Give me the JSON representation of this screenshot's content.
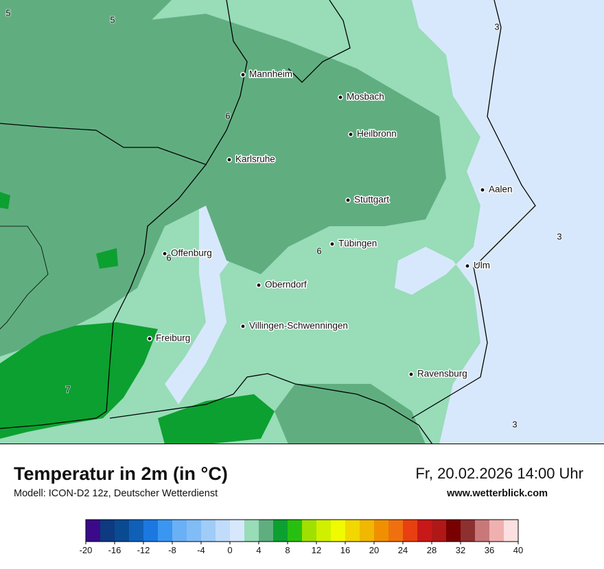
{
  "map": {
    "cities": [
      "Mannheim",
      "Mosbach",
      "Heilbronn",
      "Karlsruhe",
      "Aalen",
      "Stuttgart",
      "Tübingen",
      "Offenburg",
      "Ulm",
      "Oberndorf",
      "Villingen-Schwenningen",
      "Freiburg",
      "Ravensburg"
    ],
    "contour_labels": [
      5,
      5,
      3,
      6,
      6,
      6,
      3,
      7,
      3
    ]
  },
  "header": {
    "title": "Temperatur in 2m (in °C)",
    "subtitle": "Modell: ICON-D2 12z, Deutscher Wetterdienst",
    "date": "Fr, 20.02.2026 14:00 Uhr",
    "website": "www.wetterblick.com"
  },
  "legend": {
    "colors": [
      "#3a0a8a",
      "#0d3a80",
      "#0a4a90",
      "#1060b8",
      "#1a78e0",
      "#3a96f0",
      "#6ab0f5",
      "#80bcf5",
      "#a0ccf8",
      "#c0dcfa",
      "#d8e8fc",
      "#98dcb8",
      "#60ae80",
      "#0ca030",
      "#28c010",
      "#a0e000",
      "#d0f000",
      "#f0fa00",
      "#f0d800",
      "#f0b800",
      "#f09000",
      "#f07010",
      "#e84010",
      "#c81818",
      "#b01818",
      "#780000",
      "#8c3030",
      "#c87878",
      "#f0b0b0",
      "#fce0e0"
    ],
    "ticks": [
      -20,
      -16,
      -12,
      -8,
      -4,
      0,
      4,
      8,
      12,
      16,
      20,
      24,
      28,
      32,
      36,
      40
    ]
  }
}
